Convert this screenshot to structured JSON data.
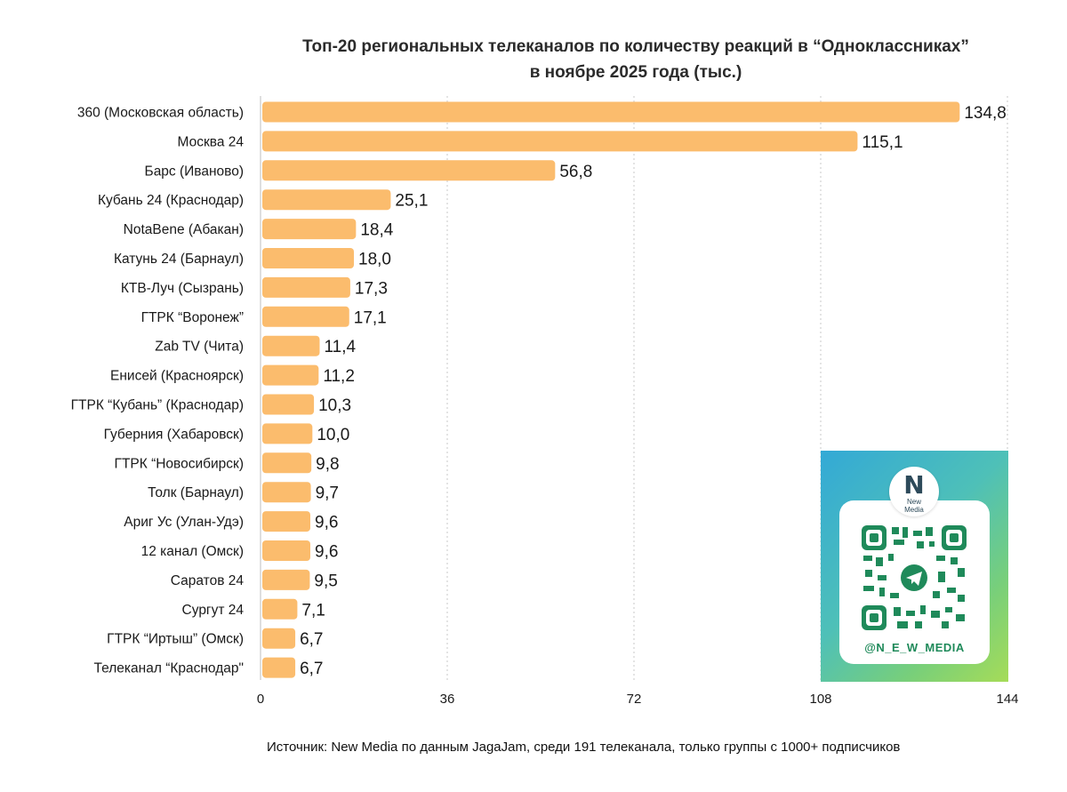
{
  "chart_data": {
    "type": "bar",
    "orientation": "horizontal",
    "title_line1": "Топ-20 региональных телеканалов по количеству реакций в “Одноклассниках”",
    "title_line2": "в ноябре 2025 года (тыс.)",
    "categories": [
      "360 (Московская область)",
      "Москва 24",
      "Барс (Иваново)",
      "Кубань 24 (Краснодар)",
      "NotaBene (Абакан)",
      "Катунь 24 (Барнаул)",
      "КТВ-Луч (Сызрань)",
      "ГТРК “Воронеж”",
      "Zab TV (Чита)",
      "Енисей (Красноярск)",
      "ГТРК “Кубань” (Краснодар)",
      "Губерния (Хабаровск)",
      "ГТРК “Новосибирск)",
      "Толк (Барнаул)",
      "Ариг Ус (Улан-Удэ)",
      "12 канал (Омск)",
      "Саратов 24",
      "Сургут 24",
      "ГТРК “Иртыш” (Омск)",
      "Телеканал “Краснодар\""
    ],
    "values": [
      134.8,
      115.1,
      56.8,
      25.1,
      18.4,
      18.0,
      17.3,
      17.1,
      11.4,
      11.2,
      10.3,
      10.0,
      9.8,
      9.7,
      9.6,
      9.6,
      9.5,
      7.1,
      6.7,
      6.7
    ],
    "value_labels": [
      "134,8",
      "115,1",
      "56,8",
      "25,1",
      "18,4",
      "18,0",
      "17,3",
      "17,1",
      "11,4",
      "11,2",
      "10,3",
      "10,0",
      "9,8",
      "9,7",
      "9,6",
      "9,6",
      "9,5",
      "7,1",
      "6,7",
      "6,7"
    ],
    "xticks": [
      0,
      36,
      72,
      108,
      144
    ],
    "xlim": [
      0,
      144
    ],
    "grid": true,
    "bar_color": "#fbbc6d",
    "grid_color": "#c9c9c9"
  },
  "source": "Источник: New Media по данным JagaJam, среди 191 телеканала, только группы с 1000+ подписчиков",
  "qr_card": {
    "logo_letter": "N",
    "logo_text_1": "New",
    "logo_text_2": "Media",
    "handle": "@N_E_W_MEDIA"
  }
}
